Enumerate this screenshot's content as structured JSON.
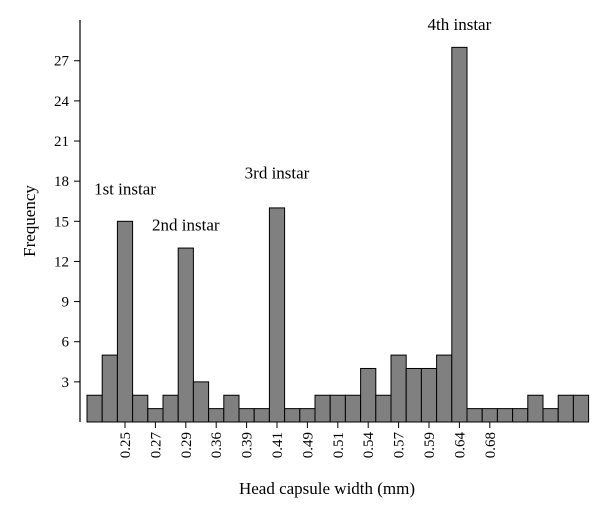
{
  "chart_data": {
    "type": "bar",
    "xlabel": "Head capsule width (mm)",
    "ylabel": "Frequency",
    "ylim": [
      0,
      30
    ],
    "yticks": [
      3,
      6,
      9,
      12,
      15,
      18,
      21,
      24,
      27
    ],
    "x_tick_labels": [
      {
        "label": "0.25",
        "bin": 2
      },
      {
        "label": "0.27",
        "bin": 4
      },
      {
        "label": "0.29",
        "bin": 6
      },
      {
        "label": "0.36",
        "bin": 8
      },
      {
        "label": "0.39",
        "bin": 10
      },
      {
        "label": "0.41",
        "bin": 12
      },
      {
        "label": "0.49",
        "bin": 14
      },
      {
        "label": "0.51",
        "bin": 16
      },
      {
        "label": "0.54",
        "bin": 18
      },
      {
        "label": "0.57",
        "bin": 20
      },
      {
        "label": "0.59",
        "bin": 22
      },
      {
        "label": "0.64",
        "bin": 24
      },
      {
        "label": "0.68",
        "bin": 26
      }
    ],
    "values": [
      2,
      5,
      15,
      2,
      1,
      2,
      13,
      3,
      1,
      2,
      1,
      1,
      16,
      1,
      1,
      2,
      2,
      2,
      4,
      2,
      5,
      4,
      4,
      5,
      28,
      1,
      1,
      1,
      1,
      2,
      1,
      2,
      2
    ],
    "annotations": [
      {
        "text": "1st instar",
        "bin": 2,
        "y": 17
      },
      {
        "text": "2nd instar",
        "bin": 6,
        "y": 14.3
      },
      {
        "text": "3rd instar",
        "bin": 12,
        "y": 18.2
      },
      {
        "text": "4th instar",
        "bin": 24,
        "y": 29.3
      }
    ],
    "bar_color": "#808080",
    "bar_edge_color": "#000000",
    "grid": false
  }
}
